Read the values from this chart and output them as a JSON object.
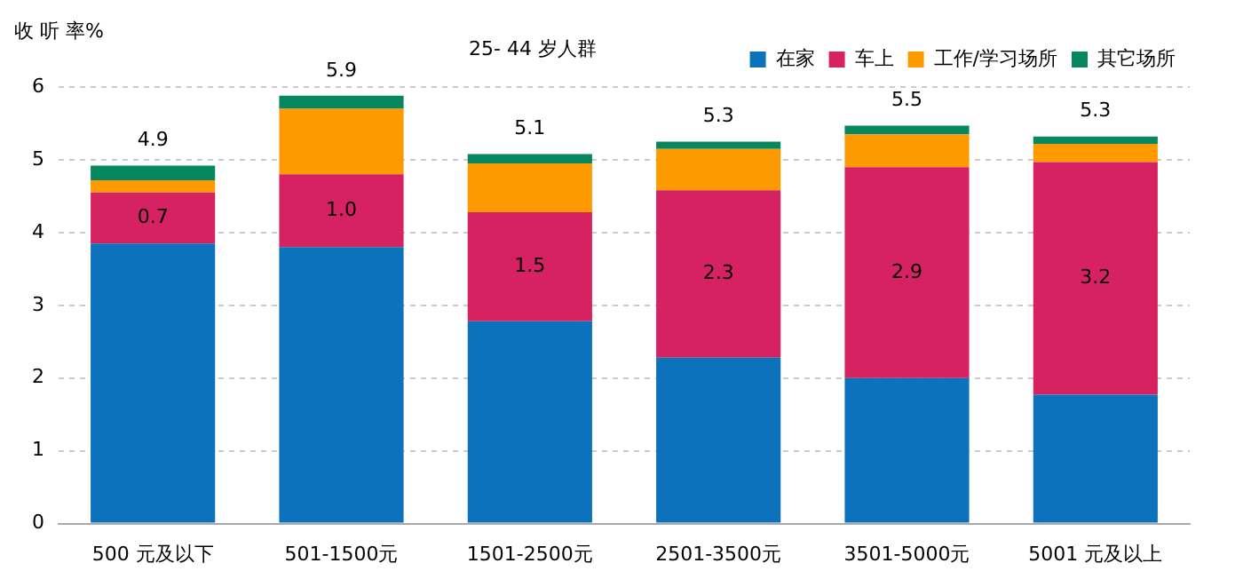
{
  "chart_data": {
    "type": "bar",
    "title": "25- 44 岁人群",
    "ylabel": "收 听 率%",
    "stacked": true,
    "categories": [
      "500 元及以下",
      "501-1500元",
      "1501-2500元",
      "2501-3500元",
      "3501-5000元",
      "5001 元及以上"
    ],
    "series": [
      {
        "name": "在家",
        "color": "#0b72bb",
        "values": [
          3.85,
          3.8,
          2.78,
          2.28,
          2.0,
          1.77
        ]
      },
      {
        "name": "车上",
        "color": "#d72262",
        "values": [
          0.7,
          1.0,
          1.5,
          2.3,
          2.9,
          3.2
        ],
        "value_labels": [
          "0.7",
          "1.0",
          "1.5",
          "2.3",
          "2.9",
          "3.2"
        ]
      },
      {
        "name": "工作/学习场所",
        "color": "#fd9a00",
        "values": [
          0.17,
          0.9,
          0.67,
          0.57,
          0.45,
          0.25
        ]
      },
      {
        "name": "其它场所",
        "color": "#078760",
        "values": [
          0.2,
          0.18,
          0.13,
          0.1,
          0.12,
          0.1
        ]
      }
    ],
    "totals": [
      "4.9",
      "5.9",
      "5.1",
      "5.3",
      "5.5",
      "5.3"
    ],
    "ylim": [
      0,
      6
    ],
    "yticks": [
      0,
      1,
      2,
      3,
      4,
      5,
      6
    ],
    "grid": "y",
    "legend": "top right"
  }
}
